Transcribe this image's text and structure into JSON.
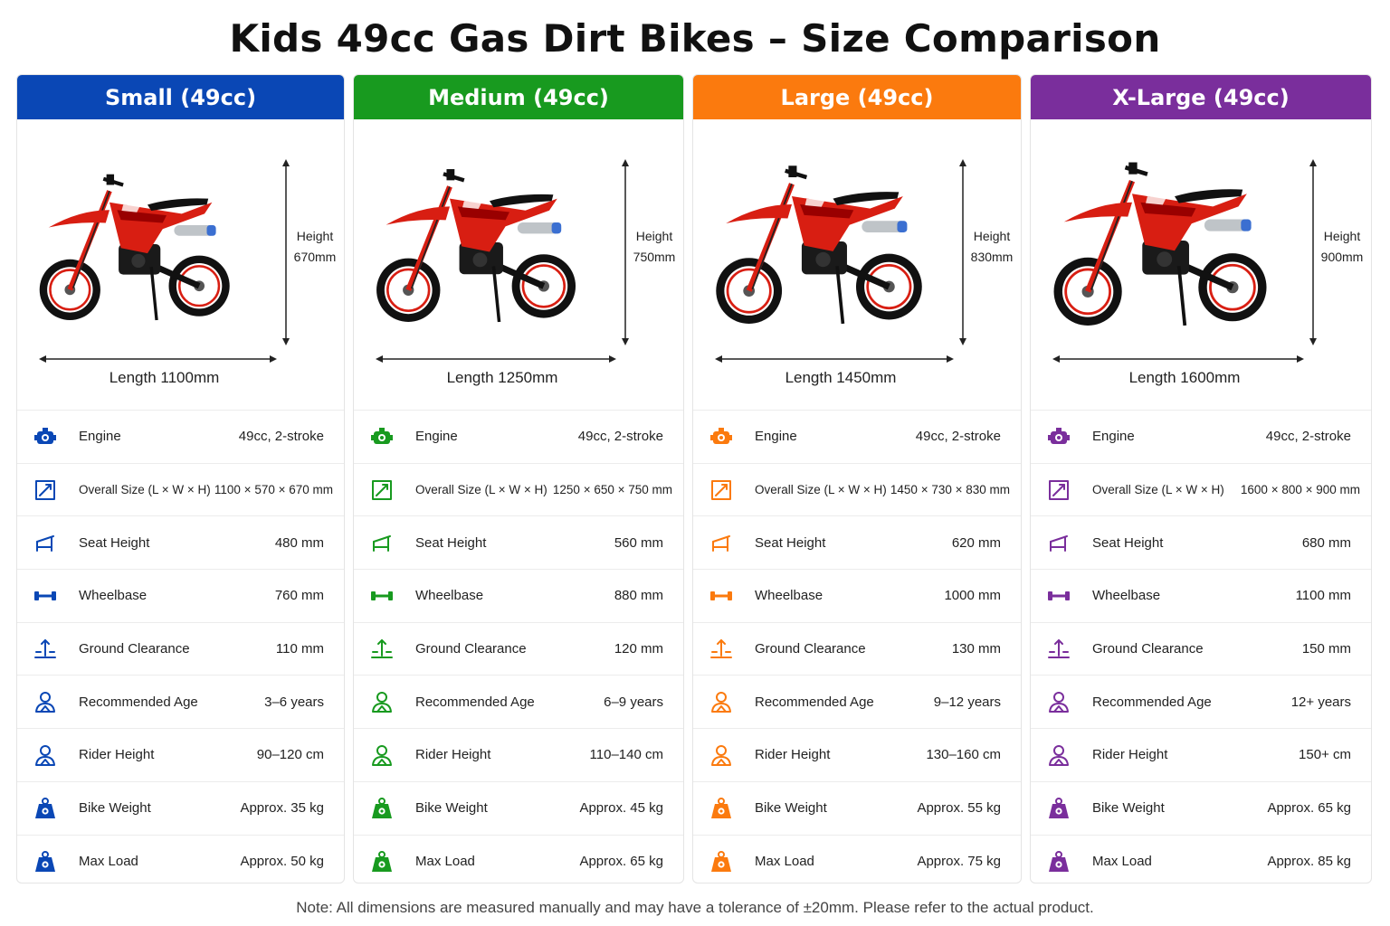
{
  "page": {
    "title": "Kids 49cc Gas Dirt Bikes – Size Comparison",
    "note": "Note: All dimensions are measured manually and may have a tolerance of ±20mm. Please refer to the actual product."
  },
  "colors": {
    "small": "#0a47b5",
    "medium": "#189a1f",
    "large": "#fb7a0e",
    "xlarge": "#7a2e9c",
    "bike_red": "#d81e12"
  },
  "spec_icons": [
    "engine-icon",
    "overall-size-icon",
    "seat-height-icon",
    "wheelbase-icon",
    "ground-clearance-icon",
    "recommended-age-icon",
    "rider-height-icon",
    "bike-weight-icon",
    "max-load-icon"
  ],
  "cards": [
    {
      "name": "Small (49cc)",
      "color": "#0a47b5",
      "height_label": "Height",
      "height_value": "670mm",
      "length_label": "Length 1100mm",
      "specs": [
        {
          "label": "Engine",
          "value": "49cc, 2-stroke"
        },
        {
          "label": "Overall Size (L × W × H)",
          "value": "1100 × 570 × 670 mm"
        },
        {
          "label": "Seat Height",
          "value": "480 mm"
        },
        {
          "label": "Wheelbase",
          "value": "760 mm"
        },
        {
          "label": "Ground Clearance",
          "value": "110 mm"
        },
        {
          "label": "Recommended Age",
          "value": "3–6 years"
        },
        {
          "label": "Rider Height",
          "value": "90–120 cm"
        },
        {
          "label": "Bike Weight",
          "value": "Approx. 35 kg"
        },
        {
          "label": "Max Load",
          "value": "Approx. 50 kg"
        }
      ]
    },
    {
      "name": "Medium (49cc)",
      "color": "#189a1f",
      "height_label": "Height",
      "height_value": "750mm",
      "length_label": "Length 1250mm",
      "specs": [
        {
          "label": "Engine",
          "value": "49cc, 2-stroke"
        },
        {
          "label": "Overall Size (L × W × H)",
          "value": "1250 × 650 × 750 mm"
        },
        {
          "label": "Seat Height",
          "value": "560 mm"
        },
        {
          "label": "Wheelbase",
          "value": "880 mm"
        },
        {
          "label": "Ground Clearance",
          "value": "120 mm"
        },
        {
          "label": "Recommended Age",
          "value": "6–9 years"
        },
        {
          "label": "Rider Height",
          "value": "110–140 cm"
        },
        {
          "label": "Bike Weight",
          "value": "Approx. 45 kg"
        },
        {
          "label": "Max Load",
          "value": "Approx. 65 kg"
        }
      ]
    },
    {
      "name": "Large (49cc)",
      "color": "#fb7a0e",
      "height_label": "Height",
      "height_value": "830mm",
      "length_label": "Length 1450mm",
      "specs": [
        {
          "label": "Engine",
          "value": "49cc, 2-stroke"
        },
        {
          "label": "Overall Size (L × W × H)",
          "value": "1450 × 730 × 830 mm"
        },
        {
          "label": "Seat Height",
          "value": "620 mm"
        },
        {
          "label": "Wheelbase",
          "value": "1000 mm"
        },
        {
          "label": "Ground Clearance",
          "value": "130 mm"
        },
        {
          "label": "Recommended Age",
          "value": "9–12 years"
        },
        {
          "label": "Rider Height",
          "value": "130–160 cm"
        },
        {
          "label": "Bike Weight",
          "value": "Approx. 55 kg"
        },
        {
          "label": "Max Load",
          "value": "Approx. 75 kg"
        }
      ]
    },
    {
      "name": "X-Large (49cc)",
      "color": "#7a2e9c",
      "height_label": "Height",
      "height_value": "900mm",
      "length_label": "Length 1600mm",
      "specs": [
        {
          "label": "Engine",
          "value": "49cc, 2-stroke"
        },
        {
          "label": "Overall Size (L × W × H)",
          "value": "1600 × 800 × 900 mm"
        },
        {
          "label": "Seat Height",
          "value": "680 mm"
        },
        {
          "label": "Wheelbase",
          "value": "1100 mm"
        },
        {
          "label": "Ground Clearance",
          "value": "150 mm"
        },
        {
          "label": "Recommended Age",
          "value": "12+ years"
        },
        {
          "label": "Rider Height",
          "value": "150+ cm"
        },
        {
          "label": "Bike Weight",
          "value": "Approx. 65 kg"
        },
        {
          "label": "Max Load",
          "value": "Approx. 85 kg"
        }
      ]
    }
  ]
}
